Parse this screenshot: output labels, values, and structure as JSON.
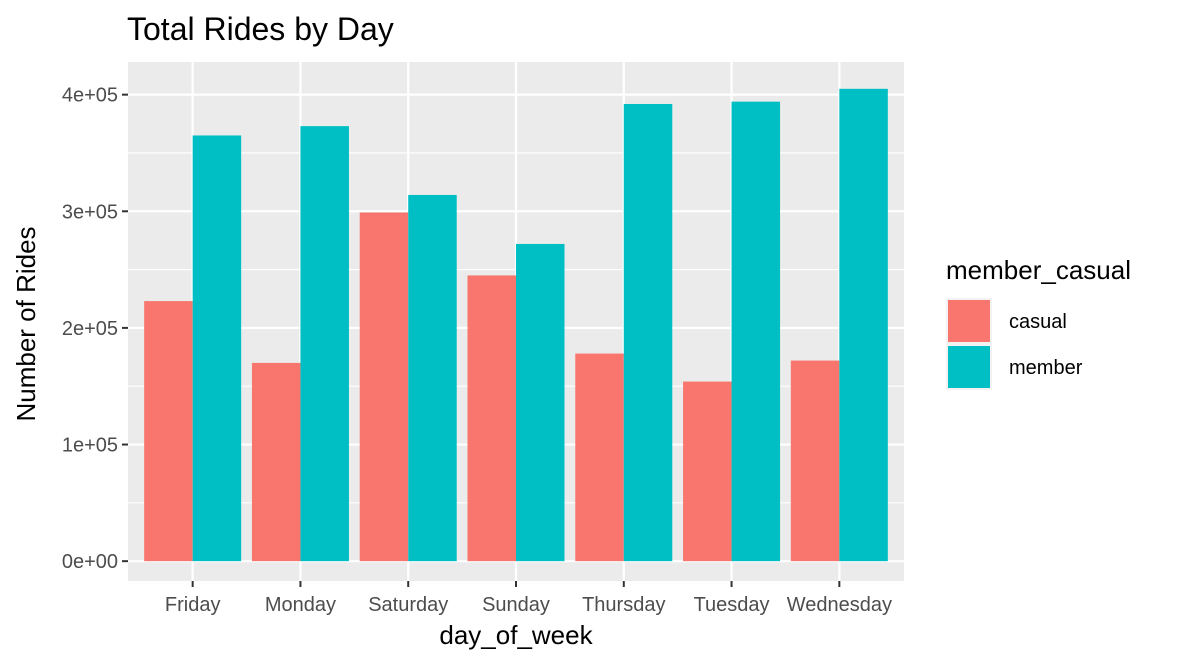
{
  "chart_data": {
    "type": "bar",
    "title": "Total Rides by Day",
    "xlabel": "day_of_week",
    "ylabel": "Number of Rides",
    "categories": [
      "Friday",
      "Monday",
      "Saturday",
      "Sunday",
      "Thursday",
      "Tuesday",
      "Wednesday"
    ],
    "series": [
      {
        "name": "casual",
        "color": "#F8766D",
        "values": [
          223000,
          170000,
          299000,
          245000,
          178000,
          154000,
          172000
        ]
      },
      {
        "name": "member",
        "color": "#00BFC4",
        "values": [
          365000,
          373000,
          314000,
          272000,
          392000,
          394000,
          405000
        ]
      }
    ],
    "ylim": [
      -17000,
      428000
    ],
    "yticks": [
      0,
      100000,
      200000,
      300000,
      400000
    ],
    "ytick_labels": [
      "0e+00",
      "1e+05",
      "2e+05",
      "3e+05",
      "4e+05"
    ],
    "grid": true,
    "legend": {
      "title": "member_casual",
      "position": "right"
    },
    "panel_background": "#EBEBEB",
    "grid_color": "#FFFFFF"
  }
}
